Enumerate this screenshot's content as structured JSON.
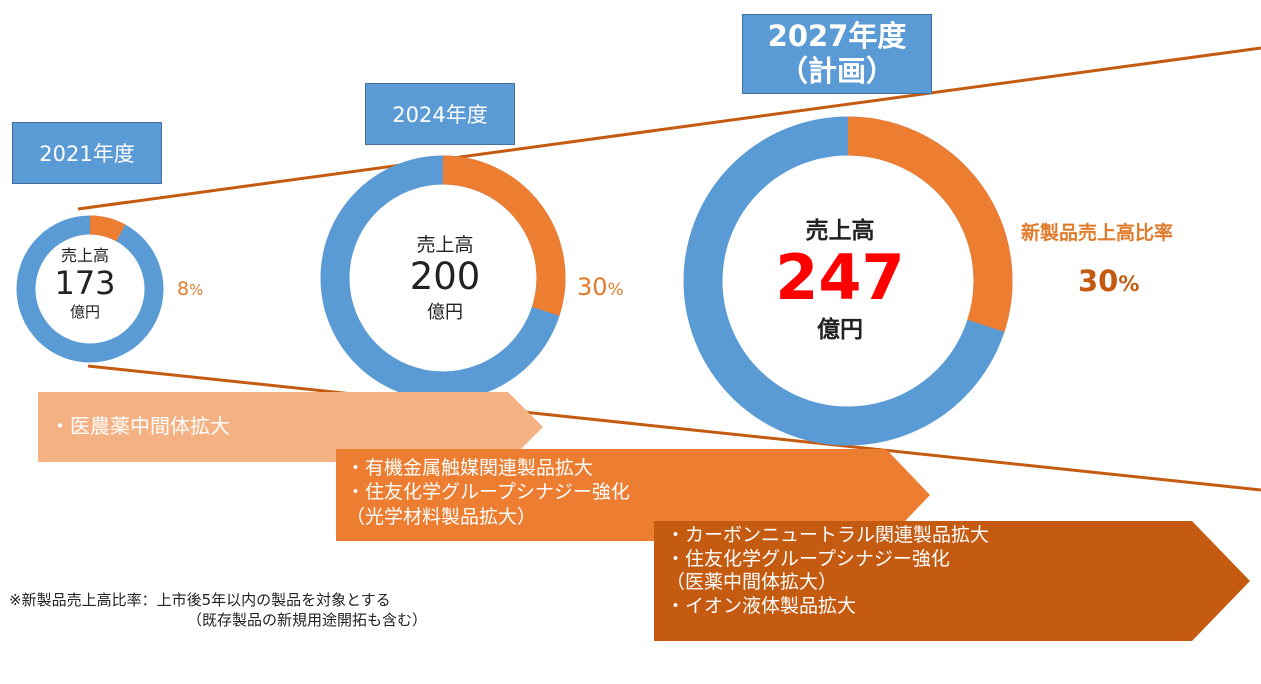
{
  "years": [
    "2021年度",
    "2024年度",
    "2027年度",
    "（計画）"
  ],
  "colors": {
    "ring_base": "#5b9bd5",
    "ring_new": "#ed7d31",
    "wedge_line": "#c55a11",
    "big_value": "#ff0000",
    "pct_text": "#e07b2b"
  },
  "rings": [
    {
      "label_top": "売上高",
      "value": "173",
      "unit": "億円",
      "pct_num": "8",
      "pct_sym": "%"
    },
    {
      "label_top": "売上高",
      "value": "200",
      "unit": "億円",
      "pct_num": "30",
      "pct_sym": "%"
    },
    {
      "label_top": "売上高",
      "value": "247",
      "unit": "億円",
      "pct_num": "30",
      "pct_sym": "%"
    }
  ],
  "legend_title": "新製品売上高比率",
  "chart_data": {
    "type": "pie",
    "variant": "donut",
    "categories": [
      "2021年度",
      "2024年度",
      "2027年度（計画）"
    ],
    "sales": [
      173,
      200,
      247
    ],
    "sales_unit": "億円",
    "new_product_ratio_percent": [
      8,
      30,
      30
    ],
    "legend": "新製品売上高比率"
  },
  "arrows": [
    {
      "lines": [
        "・医農薬中間体拡大"
      ]
    },
    {
      "lines": [
        "・有機金属触媒関連製品拡大",
        "・住友化学グループシナジー強化",
        "（光学材料製品拡大）"
      ]
    },
    {
      "lines": [
        "・カーボンニュートラル関連製品拡大",
        "・住友化学グループシナジー強化",
        "（医薬中間体拡大）",
        "・イオン液体製品拡大"
      ]
    }
  ],
  "note": [
    "※新製品売上高比率：上市後5年以内の製品を対象とする",
    "（既存製品の新規用途開拓も含む）"
  ]
}
